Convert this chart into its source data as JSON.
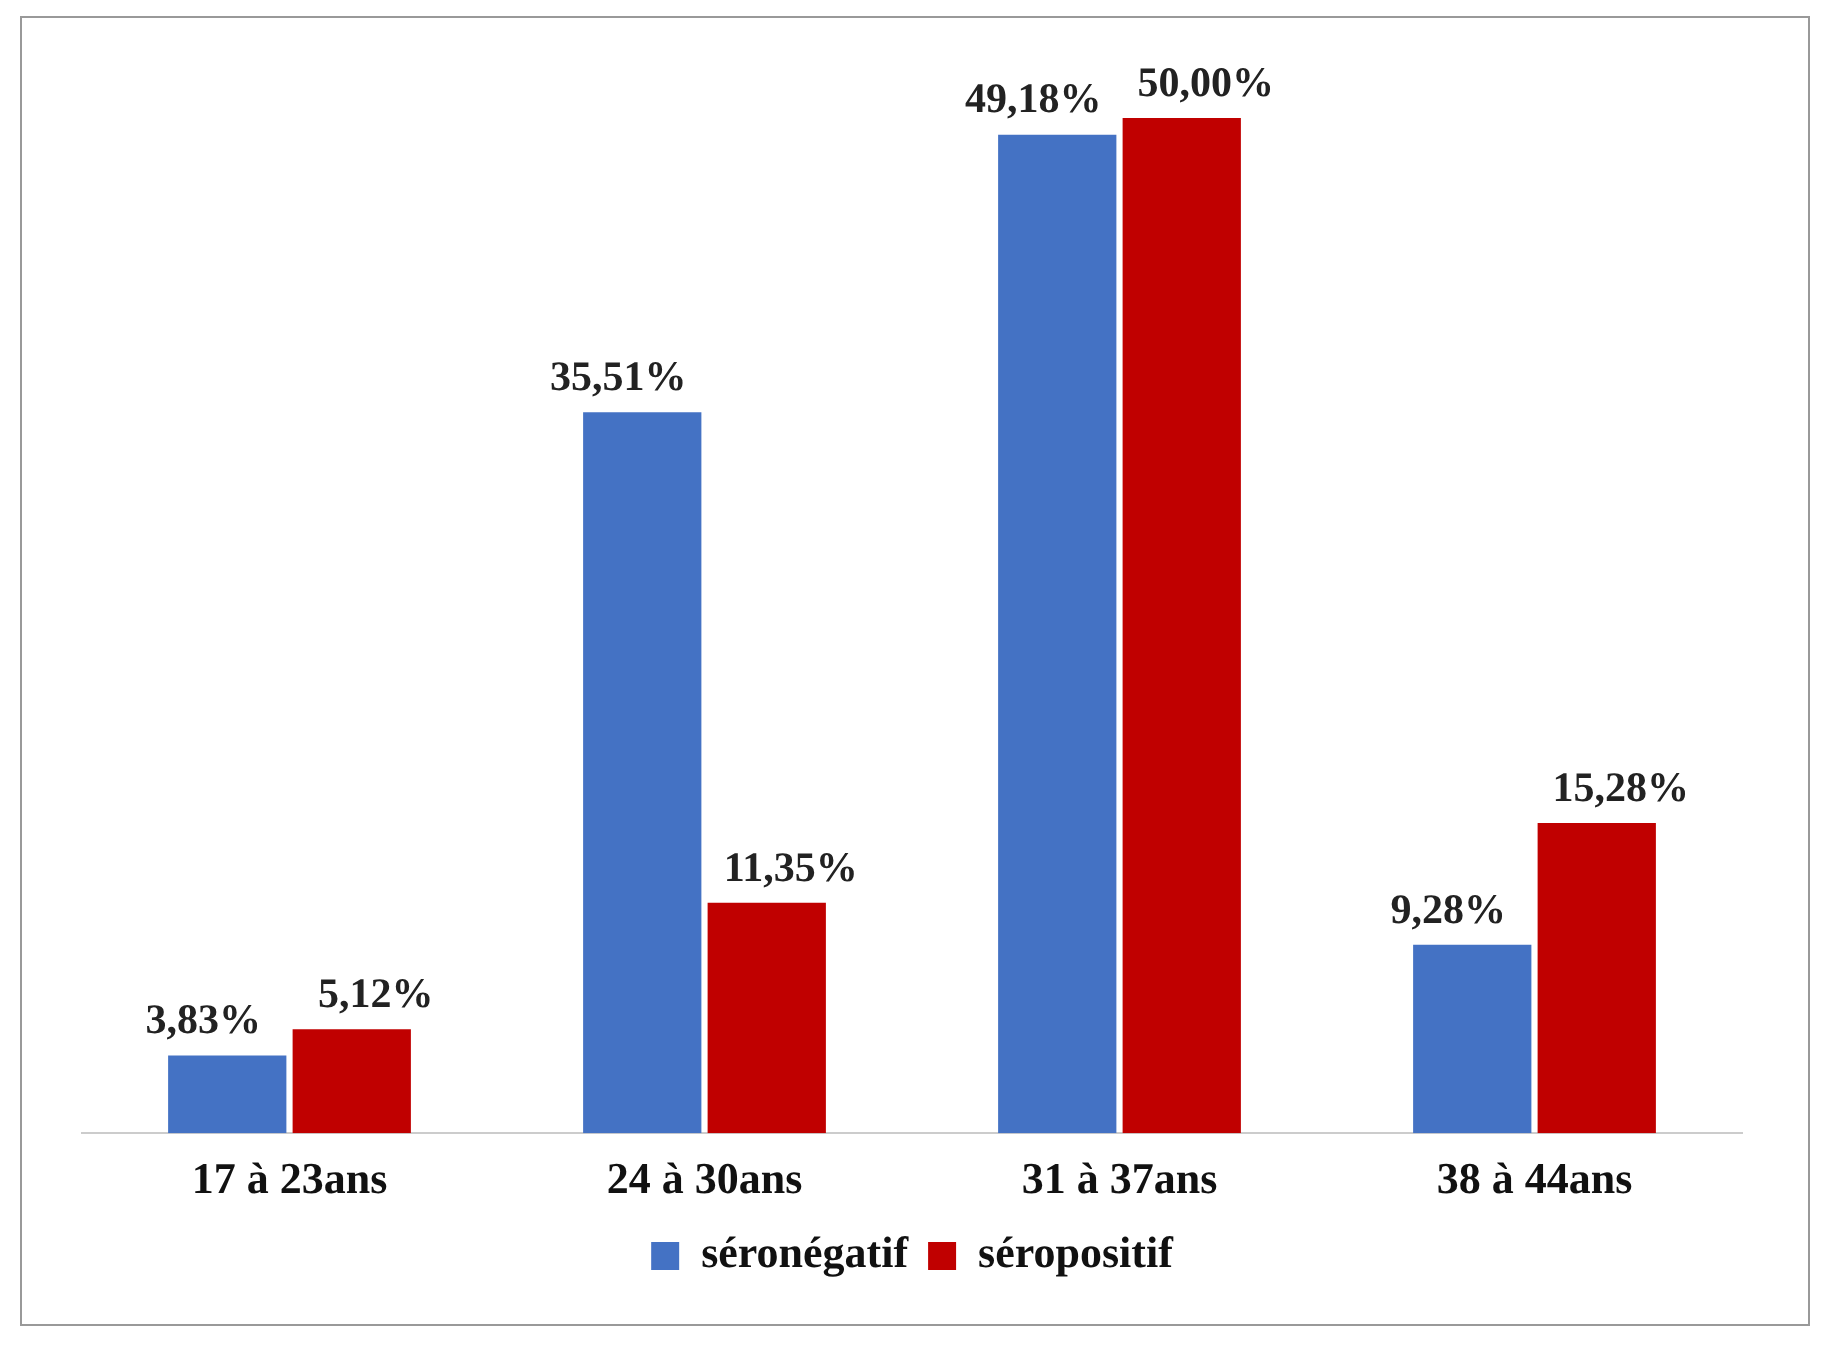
{
  "chart_data": {
    "type": "bar",
    "categories": [
      "17 à 23ans",
      "24 à 30ans",
      "31 à 37ans",
      "38 à 44ans"
    ],
    "series": [
      {
        "name": "séronégatif",
        "color": "#4472c4",
        "values": [
          3.83,
          35.51,
          49.18,
          9.28
        ],
        "value_labels": [
          "3,83%",
          "35,51%",
          "49,18%",
          "9,28%"
        ]
      },
      {
        "name": "séropositif",
        "color": "#c00000",
        "values": [
          5.12,
          11.35,
          50.0,
          15.28
        ],
        "value_labels": [
          "5,12%",
          "11,35%",
          "50,00%",
          "15,28%"
        ]
      }
    ],
    "legend": "bottom",
    "grid": false
  }
}
